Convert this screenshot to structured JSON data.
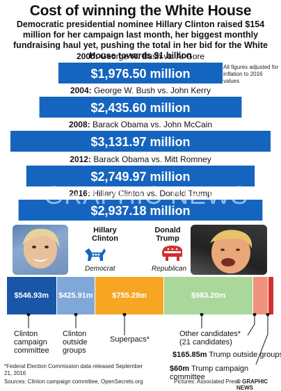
{
  "title": "Cost of winning the White House",
  "subtitle": "Democratic presidential nominee Hillary Clinton raised $154 million for her campaign last month, her biggest monthly fundraising haul yet, pushing the total in her bid for the White House towards $1 billion",
  "inflation_note": "All figures adjusted for inflation to 2016 values",
  "colors": {
    "bar": "#1565c0",
    "dark_blue": "#0d47a1",
    "clinton_committee": "#1a56a8",
    "clinton_outside": "#7fa7d8",
    "superpacs": "#f6a623",
    "other": "#a9d89a",
    "trump_outside": "#f0937c",
    "trump_committee": "#d32f2f"
  },
  "chart_data": [
    {
      "type": "bar",
      "title": "Cost of winning the White House",
      "categories": [
        "2000: George W. Bush vs. Al Gore",
        "2004: George W. Bush vs. John Kerry",
        "2008: Barack Obama vs. John McCain",
        "2012: Barack Obama vs. Mitt Romney",
        "2016: Hillary Clinton vs. Donald Trump"
      ],
      "years": [
        "2000:",
        "2004:",
        "2008:",
        "2012:",
        "2016:"
      ],
      "matchups": [
        "George W. Bush vs. Al Gore",
        "George W. Bush vs. John Kerry",
        "Barack Obama vs. John McCain",
        "Barack Obama vs. Mitt Romney",
        "Hillary Clinton vs. Donald Trump"
      ],
      "values": [
        1976.5,
        2435.6,
        3131.97,
        2749.97,
        2937.18
      ],
      "value_labels": [
        "$1,976.50 million",
        "$2,435.60 million",
        "$3,131.97 million",
        "$2,749.97 million",
        "$2,937.18 million"
      ],
      "units": "million"
    },
    {
      "type": "bar",
      "categories": [
        "Clinton campaign committee",
        "Clinton outside groups",
        "Superpacs*",
        "Other candidates* (21 candidates)",
        "$165.85m Trump outside groups",
        "$60m Trump campaign committee"
      ],
      "values": [
        546.93,
        425.91,
        755.29,
        983.2,
        165.85,
        60
      ],
      "value_labels": [
        "$546.93m",
        "$425.91m",
        "$755.29m",
        "$983.20m",
        "",
        ""
      ]
    }
  ],
  "candidates": {
    "clinton": {
      "name": "Hillary Clinton",
      "party": "Democrat"
    },
    "trump": {
      "name": "Donald Trump",
      "party": "Republican"
    }
  },
  "labels": {
    "clinton_committee": "Clinton campaign committee",
    "clinton_outside": "Clinton outside groups",
    "superpacs": "Superpacs*",
    "other": "Other candidates* (21 candidates)",
    "trump_outside_value": "$165.85m",
    "trump_outside": "Trump outside groups",
    "trump_committee_value": "$60m",
    "trump_committee": "Trump campaign committee"
  },
  "footnote": "*Federal Election Commission data released September 21, 2016",
  "sources": "Sources: Clinton campaign committee, OpenSecrets.org",
  "photos": "Pictures: Associated Press",
  "credit": "© GRAPHIC NEWS",
  "watermark": "GRAPHIC NEWS"
}
